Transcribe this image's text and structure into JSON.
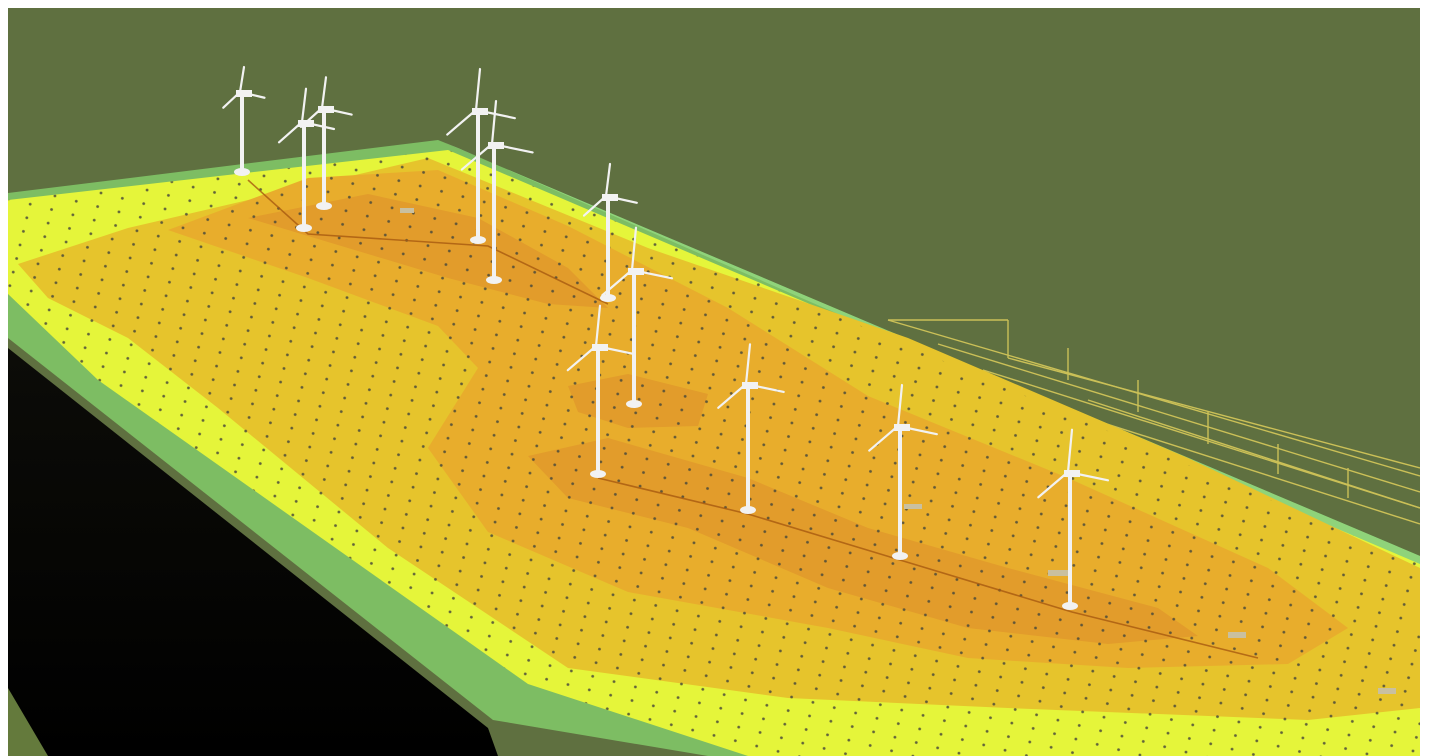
{
  "scene": {
    "description_label": "",
    "colors": {
      "sky": "#5f7040",
      "ground_green": "#7dbd63",
      "ground_green_light": "#8fd37a",
      "cliff_dark": "#0a0a05",
      "field_yellow_green": "#e5f53a",
      "field_yellow": "#e6c22c",
      "field_orange": "#e8a82a",
      "field_deep_orange": "#e29a2c",
      "grid_lines": "#d7c95a",
      "turbine": "#f2f2f2",
      "cable": "#a85a10"
    },
    "turbine_count": 11,
    "icons": [
      "wind-turbine-icon"
    ]
  }
}
